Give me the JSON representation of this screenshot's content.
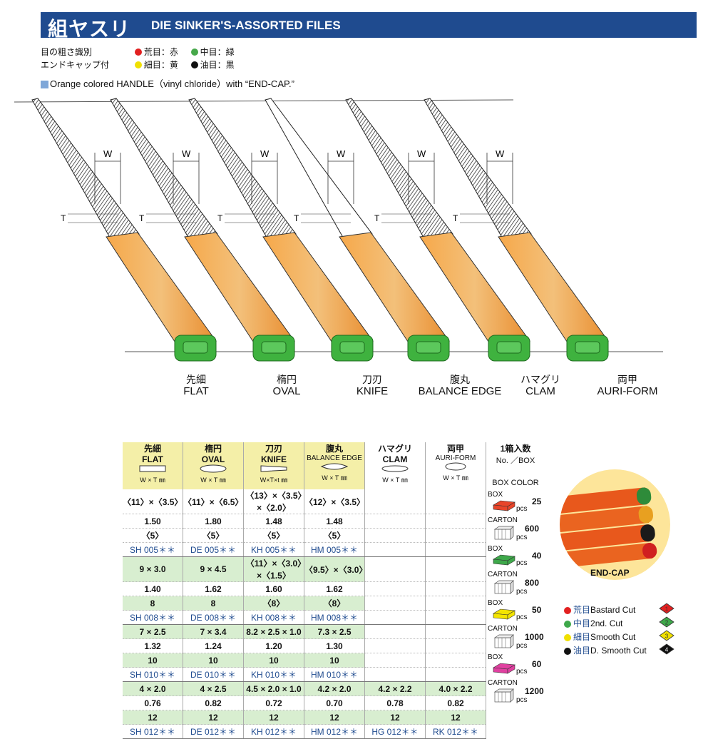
{
  "header": {
    "title_jp": "組ヤスリ",
    "title_en": "DIE SINKER'S-ASSORTED FILES"
  },
  "legend": {
    "row1_label": "目の粗さ識別",
    "row2_label": "エンドキャップ付",
    "items": [
      {
        "text": "荒目：赤",
        "color": "#e22020"
      },
      {
        "text": "中目：緑",
        "color": "#46a84a"
      },
      {
        "text": "細目：黄",
        "color": "#f0e000"
      },
      {
        "text": "油目：黒",
        "color": "#111111"
      }
    ]
  },
  "handle_note": "Orange colored HANDLE（vinyl chloride）with “END-CAP.”",
  "dim_labels": {
    "w": "W",
    "t": "T",
    "t_small": "t"
  },
  "files": [
    {
      "jp": "先細",
      "en": "FLAT"
    },
    {
      "jp": "楕円",
      "en": "OVAL"
    },
    {
      "jp": "刀刃",
      "en": "KNIFE"
    },
    {
      "jp": "腹丸",
      "en": "BALANCE EDGE"
    },
    {
      "jp": "ハマグリ",
      "en": "CLAM"
    },
    {
      "jp": "両甲",
      "en": "AURI-FORM"
    }
  ],
  "table": {
    "columns": [
      {
        "jp": "先細",
        "en": "FLAT",
        "unit": "W × T ㎜"
      },
      {
        "jp": "楕円",
        "en": "OVAL",
        "unit": "W × T ㎜"
      },
      {
        "jp": "刀刃",
        "en": "KNIFE",
        "unit": "W×T×t ㎜"
      },
      {
        "jp": "腹丸",
        "en": "BALANCE EDGE",
        "unit": "W × T ㎜"
      },
      {
        "jp": "ハマグリ",
        "en": "CLAM",
        "unit": "W × T ㎜"
      },
      {
        "jp": "両甲",
        "en": "AURI-FORM",
        "unit": "W × T ㎜"
      }
    ],
    "box_header": {
      "jp": "1箱入数",
      "en": "No. ／BOX",
      "color_label": "BOX COLOR"
    },
    "groups": [
      {
        "rows": [
          [
            "〈11〉×〈3.5〉",
            "〈11〉×〈6.5〉",
            "〈13〉×〈3.5〉×〈2.0〉",
            "〈12〉×〈3.5〉",
            "",
            ""
          ],
          [
            "1.50",
            "1.80",
            "1.48",
            "1.48",
            "",
            ""
          ],
          [
            "〈5〉",
            "〈5〉",
            "〈5〉",
            "〈5〉",
            "",
            ""
          ],
          [
            "SH 005＊＊",
            "DE 005＊＊",
            "KH 005＊＊",
            "HM 005＊＊",
            "",
            ""
          ]
        ],
        "box": {
          "box_label": "BOX",
          "box_qty": "25",
          "carton_label": "CARTON",
          "carton_qty": "600",
          "pcs": "pcs",
          "color": "#e8452a"
        }
      },
      {
        "rows": [
          [
            "9 × 3.0",
            "9 × 4.5",
            "〈11〉×〈3.0〉×〈1.5〉",
            "〈9.5〉×〈3.0〉",
            "",
            ""
          ],
          [
            "1.40",
            "1.62",
            "1.60",
            "1.62",
            "",
            ""
          ],
          [
            "8",
            "8",
            "〈8〉",
            "〈8〉",
            "",
            ""
          ],
          [
            "SH 008＊＊",
            "DE 008＊＊",
            "KH 008＊＊",
            "HM 008＊＊",
            "",
            ""
          ]
        ],
        "box": {
          "box_label": "BOX",
          "box_qty": "40",
          "carton_label": "CARTON",
          "carton_qty": "800",
          "pcs": "pcs",
          "color": "#3ea84a"
        }
      },
      {
        "rows": [
          [
            "7 × 2.5",
            "7 × 3.4",
            "8.2 × 2.5 × 1.0",
            "7.3 × 2.5",
            "",
            ""
          ],
          [
            "1.32",
            "1.24",
            "1.20",
            "1.30",
            "",
            ""
          ],
          [
            "10",
            "10",
            "10",
            "10",
            "",
            ""
          ],
          [
            "SH 010＊＊",
            "DE 010＊＊",
            "KH 010＊＊",
            "HM 010＊＊",
            "",
            ""
          ]
        ],
        "box": {
          "box_label": "BOX",
          "box_qty": "50",
          "carton_label": "CARTON",
          "carton_qty": "1000",
          "pcs": "pcs",
          "color": "#f3e400"
        }
      },
      {
        "rows": [
          [
            "4 × 2.0",
            "4 × 2.5",
            "4.5 × 2.0 × 1.0",
            "4.2 × 2.0",
            "4.2 × 2.2",
            "4.0 × 2.2"
          ],
          [
            "0.76",
            "0.82",
            "0.72",
            "0.70",
            "0.78",
            "0.82"
          ],
          [
            "12",
            "12",
            "12",
            "12",
            "12",
            "12"
          ],
          [
            "SH 012＊＊",
            "DE 012＊＊",
            "KH 012＊＊",
            "HM 012＊＊",
            "HG 012＊＊",
            "RK 012＊＊"
          ]
        ],
        "box": {
          "box_label": "BOX",
          "box_qty": "60",
          "carton_label": "CARTON",
          "carton_qty": "1200",
          "pcs": "pcs",
          "color": "#e040a0"
        }
      }
    ]
  },
  "endcap_label": "END-CAP",
  "cuts": [
    {
      "jp": "荒目",
      "en": "Bastard Cut",
      "num": "1",
      "color": "#e22020"
    },
    {
      "jp": "中目",
      "en": "2nd. Cut",
      "num": "2",
      "color": "#3ea84a"
    },
    {
      "jp": "細目",
      "en": "Smooth Cut",
      "num": "3",
      "color": "#f0e000"
    },
    {
      "jp": "油目",
      "en": "D. Smooth Cut",
      "num": "4",
      "color": "#111111"
    }
  ]
}
